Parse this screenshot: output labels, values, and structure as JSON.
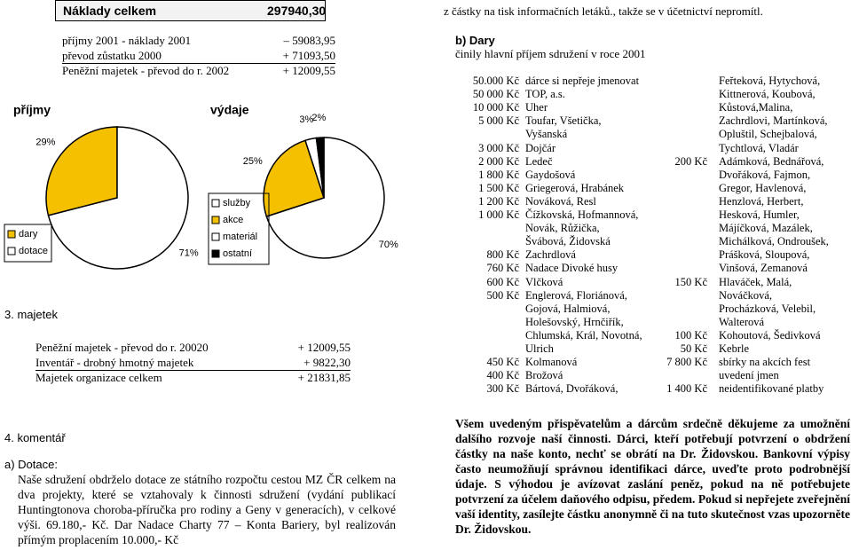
{
  "left": {
    "header": {
      "label": "Náklady celkem",
      "value": "297940,30"
    },
    "summary": [
      [
        "příjmy 2001 - náklady 2001",
        "– 59083,95"
      ],
      [
        "převod zůstatku 2000",
        "+ 71093,50"
      ],
      [
        "Peněžní majetek - převod do r. 2002",
        "+ 12009,55"
      ]
    ],
    "charts": [
      {
        "type": "pie",
        "title": "příjmy",
        "categories": [
          "dary",
          "dotace"
        ],
        "values": [
          29,
          71
        ],
        "value_labels": [
          "29%",
          "71%"
        ],
        "colors": [
          "#f5c000",
          "#ffffff"
        ]
      },
      {
        "type": "pie",
        "title": "výdaje",
        "categories": [
          "služby",
          "akce",
          "materiál",
          "ostatní"
        ],
        "values": [
          70,
          25,
          3,
          2
        ],
        "value_labels": [
          "70%",
          "25%",
          "3%",
          "2%"
        ],
        "colors": [
          "#ffffff",
          "#f5c000",
          "#ffffff",
          "#000000"
        ]
      }
    ],
    "section3": "3. majetek",
    "assets": [
      [
        "Peněžní majetek - převod do r. 20020",
        "+ 12009,55"
      ],
      [
        "Inventář - drobný hmotný majetek",
        "+ 9822,30"
      ],
      [
        "Majetek organizace celkem",
        "+ 21831,85"
      ]
    ],
    "section4": "4. komentář",
    "comment_heading": "a) Dotace:",
    "comment": "Naše sdružení obdrželo dotace ze státního rozpočtu cestou MZ ČR celkem na dva projekty, které se vztahovaly k činnosti sdružení (vydání publikací Huntingtonova choroba-příručka pro rodiny a Geny v generacích), v celkové výši. 69.180,- Kč. Dar Nadace Charty 77 – Konta Bariery, byl realizován přímým proplacením 10.000,- Kč"
  },
  "right": {
    "top_text": "z částky na tisk informačních letáků., takže se v účetnictví nepromítl.",
    "heading": "b) Dary",
    "subheading": "činily hlavní příjem sdružení v roce 2001",
    "table": {
      "rows": [
        [
          "50.000 Kč",
          "dárce si nepřeje jmenovat",
          null,
          "Feřteková, Hytychová,"
        ],
        [
          "50 000 Kč",
          "TOP, a.s.",
          null,
          "Kittnerová, Koubová,"
        ],
        [
          "10 000 Kč",
          "Uher",
          null,
          "Kůstová,Malina,"
        ],
        [
          "5 000 Kč",
          "Toufar, Všetička,",
          null,
          "Zachrdlovi, Martínková,"
        ],
        [
          null,
          "Vyšanská",
          null,
          "Opluštil, Schejbalová,"
        ],
        [
          "3 000 Kč",
          "Dojčár",
          null,
          "Tychtlová, Vladár"
        ],
        [
          "2 000 Kč",
          "Ledeč",
          "200 Kč",
          "Adámková, Bednářová,"
        ],
        [
          "1 800 Kč",
          "Gaydošová",
          null,
          "Dvořáková, Fajmon,"
        ],
        [
          "1 500 Kč",
          "Griegerová, Hrabánek",
          null,
          "Gregor, Havlenová,"
        ],
        [
          "1 200 Kč",
          "Nováková, Resl",
          null,
          "Henzlová, Herbert,"
        ],
        [
          "1 000 Kč",
          "Čížkovská, Hofmannová,",
          null,
          "Hesková, Humler,"
        ],
        [
          null,
          "Novák, Růžička,",
          null,
          "Májíčková, Mazálek,"
        ],
        [
          null,
          "Švábová, Židovská",
          null,
          "Michálková, Ondroušek,"
        ],
        [
          "800 Kč",
          "Zachrdlová",
          null,
          "Prášková, Sloupová,"
        ],
        [
          "760 Kč",
          "Nadace Divoké husy",
          null,
          "Vinšová, Zemanová"
        ],
        [
          "600 Kč",
          "Vlčková",
          "150 Kč",
          "Hlaváček, Malá,"
        ],
        [
          "500 Kč",
          "Englerová, Floriánová,",
          null,
          "Nováčková,"
        ],
        [
          null,
          "Gojová, Halmiová,",
          null,
          "Procházková, Velebil,"
        ],
        [
          null,
          "Holešovský, Hrnčiřík,",
          null,
          "Walterová"
        ],
        [
          null,
          "Chlumská, Král, Novotná,",
          "100 Kč",
          "Kohoutová, Šedivková"
        ],
        [
          null,
          "Ulrich",
          "50 Kč",
          "Kebrle"
        ],
        [
          "450 Kč",
          "Kolmanová",
          "7 800 Kč",
          "sbírky na akcích fest"
        ],
        [
          "400 Kč",
          "Brožová",
          null,
          "uvedení jmen"
        ],
        [
          "300 Kč",
          "Bártová, Dvořáková,",
          "1 400 Kč",
          "neidentifikované platby"
        ]
      ]
    },
    "thanks": "Všem uvedeným přispěvatelům a dárcům srdečně děkujeme za umožnění dalšího rozvoje naší činnosti. Dárci, kteří potřebují potvrzení o obdržení částky na naše konto, nechť se obrátí na Dr. Židovskou. Bankovní výpisy často neumožňují správnou identifikaci dárce, uveďte proto podrobnější údaje. S výhodou je avízovat zaslání peněz, pokud na ně potřebujete potvrzení za účelem daňového odpisu, předem. Pokud si nepřejete zveřejnění vaší identity, zasílejte částku anonymně či na tuto skutečnost vzas upozorněte Dr. Židovskou."
  }
}
